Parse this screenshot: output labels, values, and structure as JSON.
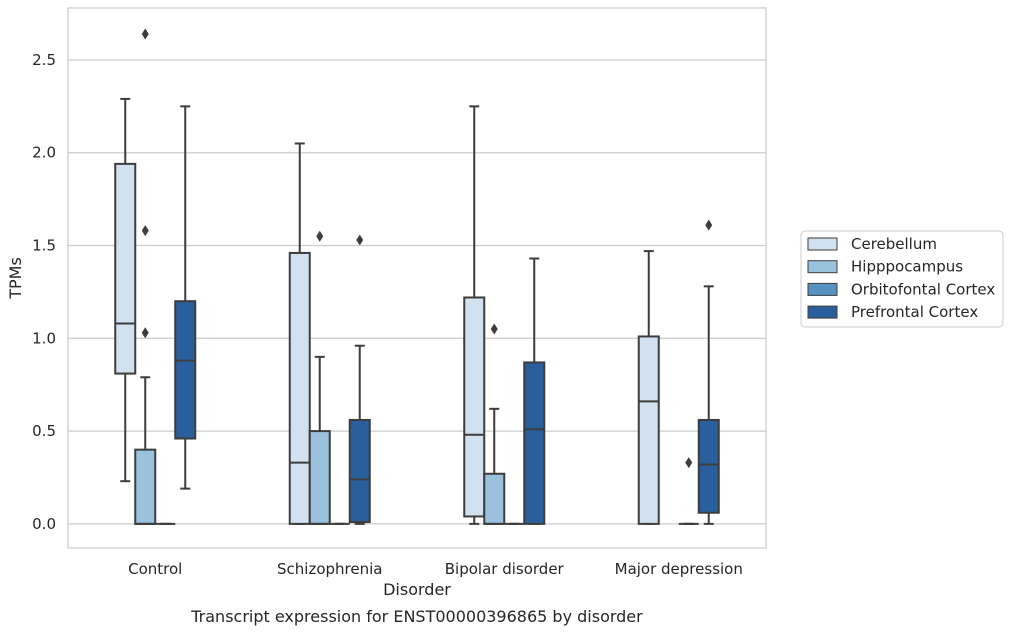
{
  "chart_data": {
    "type": "box",
    "caption": "Transcript expression for ENST00000396865 by disorder",
    "xlabel": "Disorder",
    "ylabel": "TPMs",
    "ylim": [
      -0.13,
      2.78
    ],
    "yticks": [
      "0.0",
      "0.5",
      "1.0",
      "1.5",
      "2.0",
      "2.5"
    ],
    "grid": "horizontal",
    "legend_position": "right",
    "categories": [
      "Control",
      "Schizophrenia",
      "Bipolar disorder",
      "Major depression"
    ],
    "series": [
      {
        "name": "Cerebellum",
        "color": "#d1e1f0",
        "boxes": [
          {
            "whislo": 0.23,
            "q1": 0.81,
            "med": 1.08,
            "q3": 1.94,
            "whishi": 2.29,
            "fliers": []
          },
          {
            "whislo": 0.0,
            "q1": 0.0,
            "med": 0.33,
            "q3": 1.46,
            "whishi": 2.05,
            "fliers": []
          },
          {
            "whislo": 0.0,
            "q1": 0.04,
            "med": 0.48,
            "q3": 1.22,
            "whishi": 2.25,
            "fliers": []
          },
          {
            "whislo": 0.0,
            "q1": 0.0,
            "med": 0.66,
            "q3": 1.01,
            "whishi": 1.47,
            "fliers": []
          }
        ]
      },
      {
        "name": "Hipppocampus",
        "color": "#9ac2dc",
        "boxes": [
          {
            "whislo": 0.0,
            "q1": 0.0,
            "med": 0.0,
            "q3": 0.4,
            "whishi": 0.79,
            "fliers": [
              1.03,
              1.58,
              2.64
            ]
          },
          {
            "whislo": 0.0,
            "q1": 0.0,
            "med": 0.0,
            "q3": 0.5,
            "whishi": 0.9,
            "fliers": [
              1.55
            ]
          },
          {
            "whislo": 0.0,
            "q1": 0.0,
            "med": 0.0,
            "q3": 0.27,
            "whishi": 0.62,
            "fliers": [
              1.05
            ]
          },
          null
        ]
      },
      {
        "name": "Orbitofontal Cortex",
        "color": "#5592c3",
        "boxes": [
          {
            "whislo": 0.0,
            "q1": 0.0,
            "med": 0.0,
            "q3": 0.0,
            "whishi": 0.0,
            "fliers": []
          },
          {
            "whislo": 0.0,
            "q1": 0.0,
            "med": 0.0,
            "q3": 0.0,
            "whishi": 0.0,
            "fliers": []
          },
          {
            "whislo": 0.0,
            "q1": 0.0,
            "med": 0.0,
            "q3": 0.0,
            "whishi": 0.0,
            "fliers": []
          },
          {
            "whislo": 0.0,
            "q1": 0.0,
            "med": 0.0,
            "q3": 0.0,
            "whishi": 0.0,
            "fliers": [
              0.33
            ]
          }
        ]
      },
      {
        "name": "Prefrontal Cortex",
        "color": "#2a5f9d",
        "boxes": [
          {
            "whislo": 0.19,
            "q1": 0.46,
            "med": 0.88,
            "q3": 1.2,
            "whishi": 2.25,
            "fliers": []
          },
          {
            "whislo": 0.0,
            "q1": 0.01,
            "med": 0.24,
            "q3": 0.56,
            "whishi": 0.96,
            "fliers": [
              1.53
            ]
          },
          {
            "whislo": 0.0,
            "q1": 0.0,
            "med": 0.51,
            "q3": 0.87,
            "whishi": 1.43,
            "fliers": []
          },
          {
            "whislo": 0.0,
            "q1": 0.06,
            "med": 0.32,
            "q3": 0.56,
            "whishi": 1.28,
            "fliers": [
              1.61
            ]
          }
        ]
      }
    ]
  },
  "style": {
    "grid_color": "#cccccc",
    "frame_color": "#cccccc",
    "line_color": "#3d3d3d",
    "legend_border": "#cccccc"
  }
}
